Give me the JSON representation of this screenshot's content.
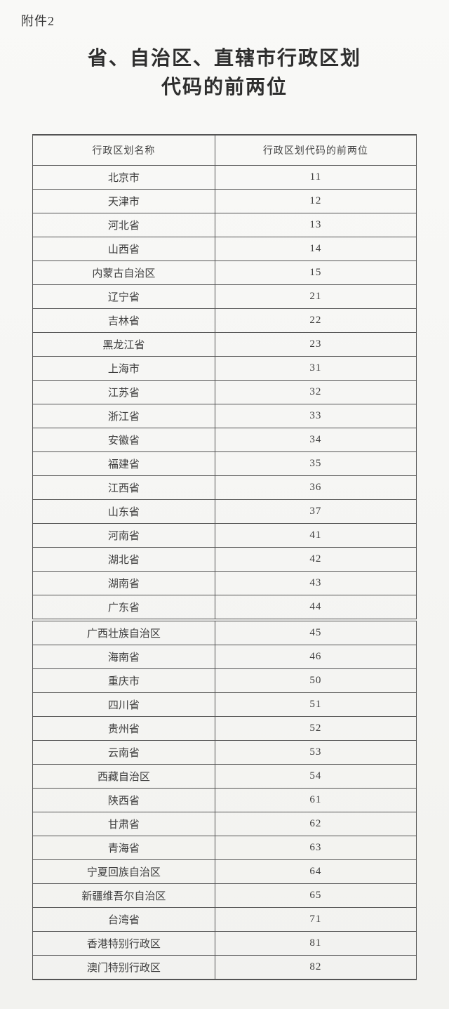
{
  "doc": {
    "attachment_label": "附件2",
    "title_line1": "省、自治区、直辖市行政区划",
    "title_line2": "代码的前两位"
  },
  "table": {
    "headers": [
      "行政区划名称",
      "行政区划代码的前两位"
    ],
    "rows": [
      {
        "name": "北京市",
        "code": "11"
      },
      {
        "name": "天津市",
        "code": "12"
      },
      {
        "name": "河北省",
        "code": "13"
      },
      {
        "name": "山西省",
        "code": "14"
      },
      {
        "name": "内蒙古自治区",
        "code": "15"
      },
      {
        "name": "辽宁省",
        "code": "21"
      },
      {
        "name": "吉林省",
        "code": "22"
      },
      {
        "name": "黑龙江省",
        "code": "23"
      },
      {
        "name": "上海市",
        "code": "31"
      },
      {
        "name": "江苏省",
        "code": "32"
      },
      {
        "name": "浙江省",
        "code": "33"
      },
      {
        "name": "安徽省",
        "code": "34"
      },
      {
        "name": "福建省",
        "code": "35"
      },
      {
        "name": "江西省",
        "code": "36"
      },
      {
        "name": "山东省",
        "code": "37"
      },
      {
        "name": "河南省",
        "code": "41"
      },
      {
        "name": "湖北省",
        "code": "42"
      },
      {
        "name": "湖南省",
        "code": "43"
      },
      {
        "name": "广东省",
        "code": "44"
      },
      {
        "name": "广西壮族自治区",
        "code": "45"
      },
      {
        "name": "海南省",
        "code": "46"
      },
      {
        "name": "重庆市",
        "code": "50"
      },
      {
        "name": "四川省",
        "code": "51"
      },
      {
        "name": "贵州省",
        "code": "52"
      },
      {
        "name": "云南省",
        "code": "53"
      },
      {
        "name": "西藏自治区",
        "code": "54"
      },
      {
        "name": "陕西省",
        "code": "61"
      },
      {
        "name": "甘肃省",
        "code": "62"
      },
      {
        "name": "青海省",
        "code": "63"
      },
      {
        "name": "宁夏回族自治区",
        "code": "64"
      },
      {
        "name": "新疆维吾尔自治区",
        "code": "65"
      },
      {
        "name": "台湾省",
        "code": "71"
      },
      {
        "name": "香港特别行政区",
        "code": "81"
      },
      {
        "name": "澳门特别行政区",
        "code": "82"
      }
    ]
  },
  "colors": {
    "paper": "#f6f6f4",
    "ink": "#3a3a3a",
    "table_border": "#545454"
  }
}
